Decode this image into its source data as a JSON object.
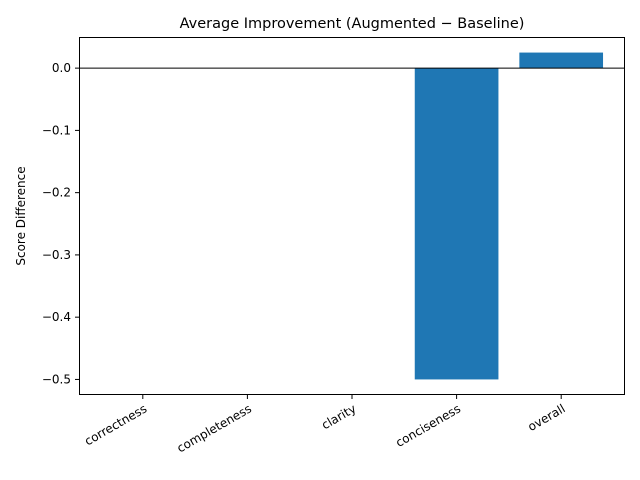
{
  "chart_data": {
    "type": "bar",
    "title": "Average Improvement (Augmented − Baseline)",
    "xlabel": "",
    "ylabel": "Score Difference",
    "categories": [
      "correctness",
      "completeness",
      "clarity",
      "conciseness",
      "overall"
    ],
    "values": [
      0.0,
      0.0,
      0.0,
      -0.5,
      0.025
    ],
    "ylim": [
      -0.525,
      0.05
    ],
    "yticks": [
      0.0,
      -0.1,
      -0.2,
      -0.3,
      -0.4,
      -0.5
    ],
    "ytick_labels": [
      "0.0",
      "−0.1",
      "−0.2",
      "−0.3",
      "−0.4",
      "−0.5"
    ],
    "zero_line": true,
    "grid": false,
    "legend": "none",
    "bar_color": "#1f77b4",
    "xtick_rotation_deg": 30
  }
}
